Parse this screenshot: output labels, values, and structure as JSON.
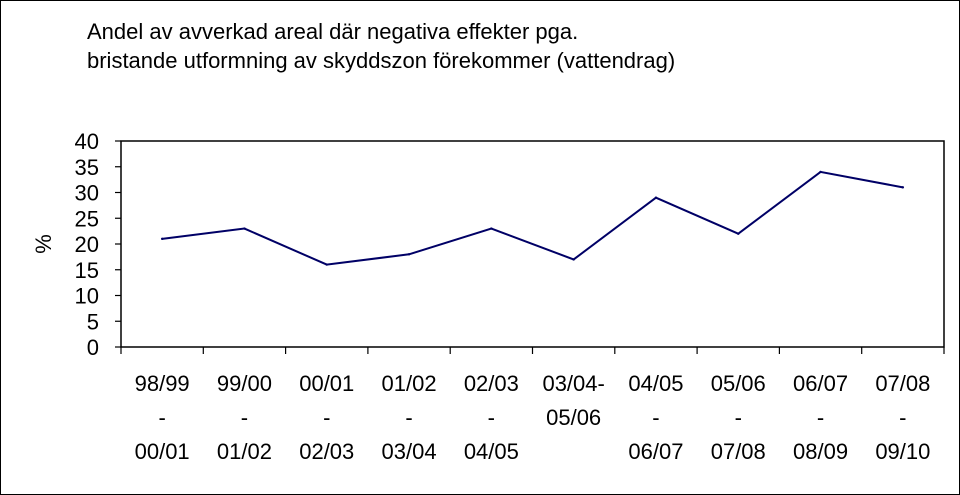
{
  "chart_data": {
    "type": "line",
    "title": [
      "Andel av avverkad areal där negativa effekter pga.",
      "bristande utformning av skyddszon förekommer (vattendrag)"
    ],
    "ylabel": "%",
    "xlabel": "",
    "categories": [
      [
        "98/99",
        "-",
        "00/01"
      ],
      [
        "99/00",
        "-",
        "01/02"
      ],
      [
        "00/01",
        "-",
        "02/03"
      ],
      [
        "01/02",
        "-",
        "03/04"
      ],
      [
        "02/03",
        "-",
        "04/05"
      ],
      [
        "03/04-",
        "05/06"
      ],
      [
        "04/05",
        "-",
        "06/07"
      ],
      [
        "05/06",
        "-",
        "07/08"
      ],
      [
        "06/07",
        "-",
        "08/09"
      ],
      [
        "07/08",
        "-",
        "09/10"
      ]
    ],
    "series": [
      {
        "values": [
          21,
          23,
          16,
          18,
          23,
          17,
          29,
          22,
          34,
          31
        ]
      }
    ],
    "ylim": [
      0,
      40
    ],
    "yticks": [
      0,
      5,
      10,
      15,
      20,
      25,
      30,
      35,
      40
    ],
    "grid": false,
    "line_color": "#000066"
  }
}
